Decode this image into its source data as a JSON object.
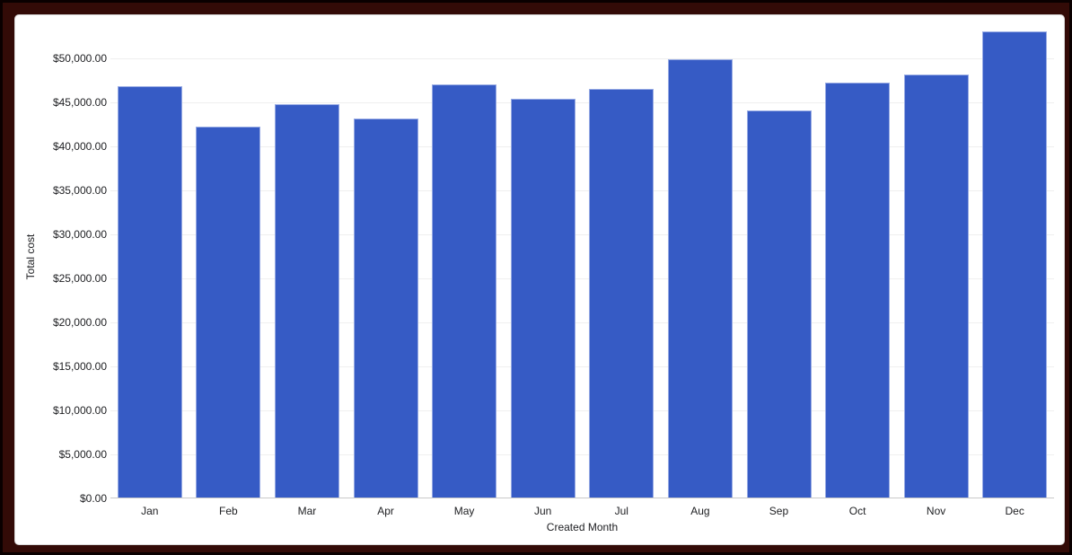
{
  "frame": {
    "outer_border_color": "#0a0000",
    "frame_color": "#330b07",
    "card_background": "#ffffff"
  },
  "chart_data": {
    "type": "bar",
    "title": "",
    "xlabel": "Created Month",
    "ylabel": "Total cost",
    "categories": [
      "Jan",
      "Feb",
      "Mar",
      "Apr",
      "May",
      "Jun",
      "Jul",
      "Aug",
      "Sep",
      "Oct",
      "Nov",
      "Dec"
    ],
    "values": [
      46700,
      42100,
      44700,
      43100,
      46900,
      45300,
      46400,
      49800,
      44000,
      47100,
      48100,
      53000
    ],
    "y_tick_values": [
      0,
      5000,
      10000,
      15000,
      20000,
      25000,
      30000,
      35000,
      40000,
      45000,
      50000
    ],
    "y_ticks": [
      "$0.00",
      "$5,000.00",
      "$10,000.00",
      "$15,000.00",
      "$20,000.00",
      "$25,000.00",
      "$30,000.00",
      "$35,000.00",
      "$40,000.00",
      "$45,000.00",
      "$50,000.00"
    ],
    "ylim": [
      0,
      54900
    ],
    "grid": true,
    "legend": "none",
    "bar_color": "#365bc5",
    "bar_border_color": "#98abe4",
    "gridline_color": "#efefef",
    "baseline_color": "#c9c9c9",
    "label_color": "#202124"
  }
}
